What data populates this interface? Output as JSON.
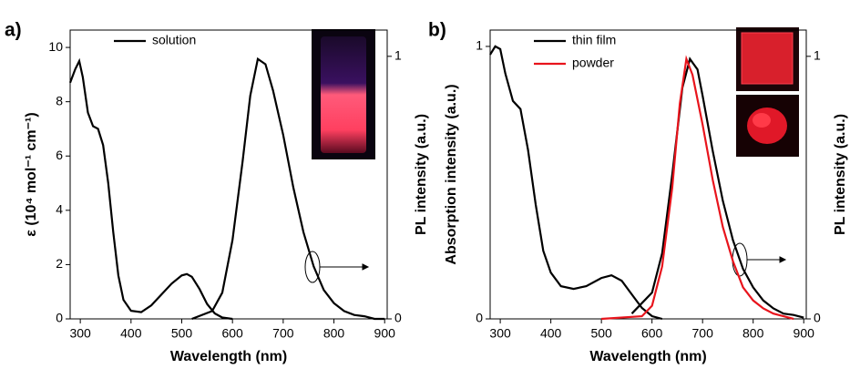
{
  "chart_data": [
    {
      "type": "line",
      "panel_label": "a)",
      "x_label": "Wavelength (nm)",
      "y_label": "ε (10⁴ mol⁻¹ cm⁻¹)",
      "y2_label": "PL intensity (a.u.)",
      "xlim": [
        280,
        905
      ],
      "xticks": [
        300,
        400,
        500,
        600,
        700,
        800,
        900
      ],
      "ylim": [
        0,
        10.64
      ],
      "yticks": [
        0,
        2,
        4,
        6,
        8,
        10
      ],
      "y2lim": [
        0,
        1.1
      ],
      "y2ticks": [
        0,
        1
      ],
      "series": [
        {
          "name": "solution",
          "color": "#000000",
          "x": [
            280,
            290,
            298,
            305,
            315,
            325,
            335,
            345,
            355,
            365,
            375,
            385,
            400,
            420,
            440,
            460,
            480,
            500,
            510,
            520,
            535,
            550,
            565,
            580,
            600
          ],
          "values": [
            8.7,
            9.2,
            9.5,
            8.9,
            7.6,
            7.1,
            7.0,
            6.4,
            5.0,
            3.2,
            1.6,
            0.7,
            0.3,
            0.25,
            0.5,
            0.9,
            1.3,
            1.6,
            1.65,
            1.55,
            1.1,
            0.55,
            0.2,
            0.05,
            0.0
          ]
        },
        {
          "color": "#000000",
          "axis": "y2",
          "x": [
            520,
            560,
            580,
            600,
            620,
            635,
            650,
            665,
            680,
            700,
            720,
            740,
            760,
            780,
            800,
            820,
            840,
            860,
            880,
            900
          ],
          "values": [
            0.0,
            0.03,
            0.1,
            0.3,
            0.6,
            0.85,
            0.99,
            0.97,
            0.87,
            0.7,
            0.5,
            0.33,
            0.2,
            0.11,
            0.06,
            0.03,
            0.015,
            0.01,
            0.0,
            0.0
          ]
        }
      ]
    },
    {
      "type": "line",
      "panel_label": "b)",
      "x_label": "Wavelength (nm)",
      "y_label": "Absorption intensity (a.u.)",
      "y2_label": "PL intensity (a.u.)",
      "xlim": [
        280,
        905
      ],
      "xticks": [
        300,
        400,
        500,
        600,
        700,
        800,
        900
      ],
      "ylim": [
        0,
        1.06
      ],
      "yticks": [
        0,
        1
      ],
      "y2lim": [
        0,
        1.1
      ],
      "y2ticks": [
        0,
        1
      ],
      "series": [
        {
          "name": "thin film",
          "color": "#000000",
          "x": [
            280,
            290,
            300,
            310,
            325,
            340,
            355,
            370,
            385,
            400,
            420,
            445,
            470,
            500,
            520,
            540,
            560,
            580,
            600,
            620
          ],
          "values": [
            0.97,
            1.0,
            0.99,
            0.9,
            0.8,
            0.77,
            0.62,
            0.42,
            0.25,
            0.17,
            0.12,
            0.11,
            0.12,
            0.15,
            0.16,
            0.14,
            0.09,
            0.04,
            0.01,
            0.0
          ]
        },
        {
          "color": "#000000",
          "axis": "y2",
          "x": [
            560,
            600,
            620,
            640,
            660,
            675,
            690,
            700,
            720,
            740,
            760,
            780,
            800,
            820,
            840,
            860,
            880,
            900
          ],
          "values": [
            0.02,
            0.1,
            0.25,
            0.55,
            0.88,
            0.99,
            0.95,
            0.85,
            0.64,
            0.45,
            0.3,
            0.19,
            0.12,
            0.07,
            0.04,
            0.02,
            0.015,
            0.005
          ]
        },
        {
          "name": "powder",
          "color": "#e8141c",
          "axis": "y2",
          "x": [
            500,
            580,
            600,
            620,
            640,
            655,
            668,
            680,
            700,
            720,
            740,
            760,
            780,
            800,
            820,
            840,
            860,
            880
          ],
          "values": [
            0.0,
            0.01,
            0.05,
            0.2,
            0.5,
            0.82,
            0.99,
            0.93,
            0.74,
            0.53,
            0.35,
            0.22,
            0.12,
            0.07,
            0.04,
            0.02,
            0.01,
            0.0
          ]
        }
      ]
    }
  ]
}
